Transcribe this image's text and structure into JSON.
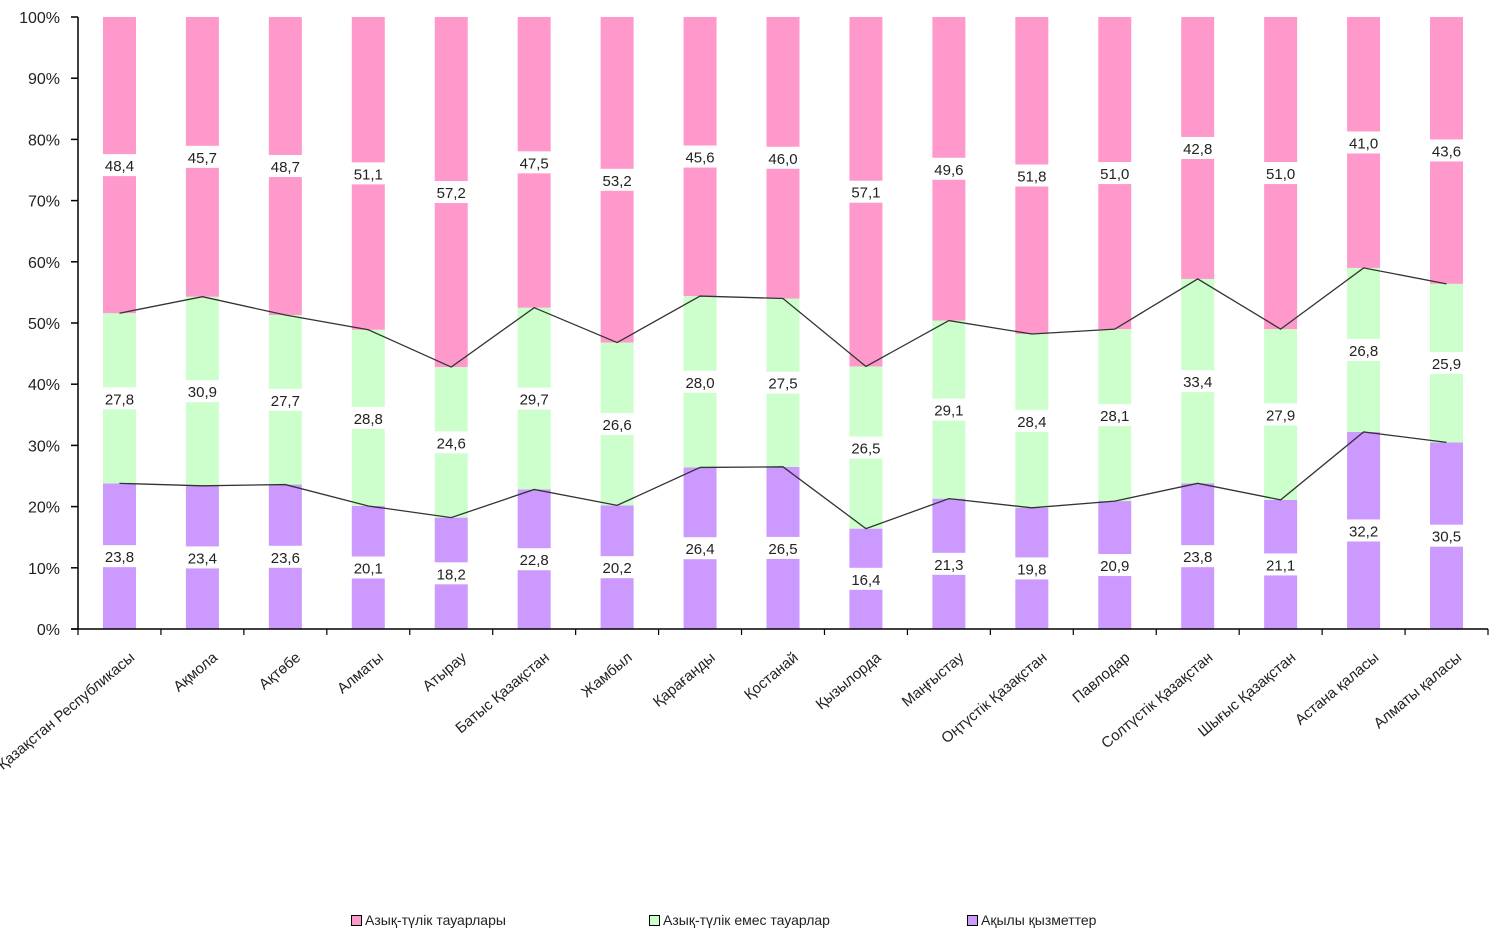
{
  "chart_data": {
    "type": "bar",
    "stacked": true,
    "percent_stacked": true,
    "categories": [
      "Қазақстан Республикасы",
      "Ақмола",
      "Ақтөбе",
      "Алматы",
      "Атырау",
      "Батыс Қазақстан",
      "Жамбыл",
      "Қарағанды",
      "Қостанай",
      "Қызылорда",
      "Маңғыстау",
      "Оңтүстік Қазақстан",
      "Павлодар",
      "Солтүстік Қазақстан",
      "Шығыс Қазақстан",
      "Астана қаласы",
      "Алматы қаласы"
    ],
    "series": [
      {
        "name": "Ақылы қызметтер",
        "color": "#cc99ff",
        "values": [
          23.8,
          23.4,
          23.6,
          20.1,
          18.2,
          22.8,
          20.2,
          26.4,
          26.5,
          16.4,
          21.3,
          19.8,
          20.9,
          23.8,
          21.1,
          32.2,
          30.5
        ],
        "labels": [
          "23,8",
          "23,4",
          "23,6",
          "20,1",
          "18,2",
          "22,8",
          "20,2",
          "26,4",
          "26,5",
          "16,4",
          "21,3",
          "19,8",
          "20,9",
          "23,8",
          "21,1",
          "32,2",
          "30,5"
        ]
      },
      {
        "name": "Азық-түлік емес тауарлар",
        "color": "#ccffcc",
        "values": [
          27.8,
          30.9,
          27.7,
          28.8,
          24.6,
          29.7,
          26.6,
          28.0,
          27.5,
          26.5,
          29.1,
          28.4,
          28.1,
          33.4,
          27.9,
          26.8,
          25.9
        ],
        "labels": [
          "27,8",
          "30,9",
          "27,7",
          "28,8",
          "24,6",
          "29,7",
          "26,6",
          "28,0",
          "27,5",
          "26,5",
          "29,1",
          "28,4",
          "28,1",
          "33,4",
          "27,9",
          "26,8",
          "25,9"
        ]
      },
      {
        "name": "Азық-түлік тауарлары",
        "color": "#ff99cc",
        "values": [
          48.4,
          45.7,
          48.7,
          51.1,
          57.2,
          47.5,
          53.2,
          45.6,
          46.0,
          57.1,
          49.6,
          51.8,
          51.0,
          42.8,
          51.0,
          41.0,
          43.6
        ],
        "labels": [
          "48,4",
          "45,7",
          "48,7",
          "51,1",
          "57,2",
          "47,5",
          "53,2",
          "45,6",
          "46,0",
          "57,1",
          "49,6",
          "51,8",
          "51,0",
          "42,8",
          "51,0",
          "41,0",
          "43,6"
        ]
      }
    ],
    "y_ticks": [
      "0%",
      "10%",
      "20%",
      "30%",
      "40%",
      "50%",
      "60%",
      "70%",
      "80%",
      "90%",
      "100%"
    ],
    "ylim": [
      0,
      100
    ],
    "series_lines": true,
    "grid": false,
    "legend_position": "bottom"
  },
  "legend": {
    "items": [
      {
        "label": "Азық-түлік тауарлары",
        "color": "#ff99cc"
      },
      {
        "label": "Азық-түлік емес тауарлар",
        "color": "#ccffcc"
      },
      {
        "label": "Ақылы қызметтер",
        "color": "#cc99ff"
      }
    ]
  }
}
